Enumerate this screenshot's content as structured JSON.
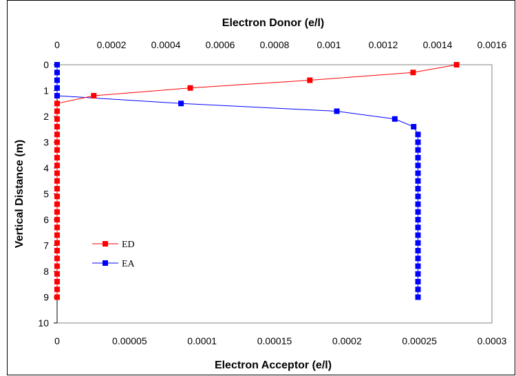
{
  "chart_data": {
    "type": "line",
    "top_axis": {
      "label": "Electron Donor  (e/l)",
      "range": [
        0,
        0.0016
      ],
      "ticks": [
        "0",
        "0.0002",
        "0.0004",
        "0.0006",
        "0.0008",
        "0.001",
        "0.0012",
        "0.0014",
        "0.0016"
      ],
      "tick_values": [
        0,
        0.0002,
        0.0004,
        0.0006,
        0.0008,
        0.001,
        0.0012,
        0.0014,
        0.0016
      ]
    },
    "bottom_axis": {
      "label": "Electron Acceptor  (e/l)",
      "range": [
        0,
        0.0003
      ],
      "ticks": [
        "0",
        "0.00005",
        "0.0001",
        "0.00015",
        "0.0002",
        "0.00025",
        "0.0003"
      ],
      "tick_values": [
        0,
        5e-05,
        0.0001,
        0.00015,
        0.0002,
        0.00025,
        0.0003
      ]
    },
    "y_axis": {
      "label": "Vertical Distance  (m)",
      "range": [
        0,
        10
      ],
      "reversed": true,
      "ticks": [
        "0",
        "1",
        "2",
        "3",
        "4",
        "5",
        "6",
        "7",
        "8",
        "9",
        "10"
      ],
      "tick_values": [
        0,
        1,
        2,
        3,
        4,
        5,
        6,
        7,
        8,
        9,
        10
      ]
    },
    "grid": false,
    "legend_position": "left-lower",
    "series": [
      {
        "name": "ED",
        "axis": "top",
        "color": "#ff0000",
        "x": [
          0.00147,
          0.00131,
          0.00093,
          0.00049,
          0.000135,
          0,
          0,
          0,
          0,
          0,
          0,
          0,
          0,
          0,
          0,
          0,
          0,
          0,
          0,
          0,
          0,
          0,
          0,
          0,
          0,
          0,
          0,
          0,
          0,
          0,
          0
        ],
        "y": [
          0,
          0.3,
          0.6,
          0.9,
          1.2,
          1.5,
          1.8,
          2.1,
          2.4,
          2.7,
          3.0,
          3.3,
          3.6,
          3.9,
          4.2,
          4.5,
          4.8,
          5.1,
          5.4,
          5.7,
          6.0,
          6.3,
          6.6,
          6.9,
          7.2,
          7.5,
          7.8,
          8.1,
          8.4,
          8.7,
          9.0
        ]
      },
      {
        "name": "EA",
        "axis": "bottom",
        "color": "#0000ff",
        "x": [
          0,
          0,
          0,
          0,
          0,
          8.55e-05,
          0.000193,
          0.000233,
          0.000246,
          0.000249,
          0.000249,
          0.000249,
          0.000249,
          0.000249,
          0.000249,
          0.000249,
          0.000249,
          0.000249,
          0.000249,
          0.000249,
          0.000249,
          0.000249,
          0.000249,
          0.000249,
          0.000249,
          0.000249,
          0.000249,
          0.000249,
          0.000249,
          0.000249,
          0.000249
        ],
        "y": [
          0,
          0.3,
          0.6,
          0.9,
          1.2,
          1.5,
          1.8,
          2.1,
          2.4,
          2.7,
          3.0,
          3.3,
          3.6,
          3.9,
          4.2,
          4.5,
          4.8,
          5.1,
          5.4,
          5.7,
          6.0,
          6.3,
          6.6,
          6.9,
          7.2,
          7.5,
          7.8,
          8.1,
          8.4,
          8.7,
          9.0
        ]
      }
    ]
  }
}
